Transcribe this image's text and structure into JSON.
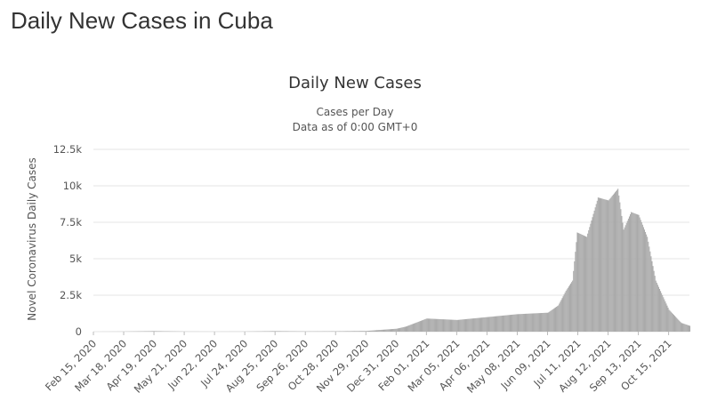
{
  "page": {
    "heading": "Daily New Cases in Cuba"
  },
  "chart_data": {
    "type": "bar",
    "title": "Daily New Cases",
    "subtitle": [
      "Cases per Day",
      "Data as of 0:00 GMT+0"
    ],
    "xlabel": "",
    "ylabel": "Novel Coronavirus Daily Cases",
    "ylim": [
      0,
      12500
    ],
    "y_ticks": [
      0,
      2500,
      5000,
      7500,
      10000,
      12500
    ],
    "y_tick_labels": [
      "0",
      "2.5k",
      "5k",
      "7.5k",
      "10k",
      "12.5k"
    ],
    "x_range": [
      "2020-02-15",
      "2021-11-06"
    ],
    "x_tick_labels": [
      "Feb 15, 2020",
      "Mar 18, 2020",
      "Apr 19, 2020",
      "May 21, 2020",
      "Jun 22, 2020",
      "Jul 24, 2020",
      "Aug 25, 2020",
      "Sep 26, 2020",
      "Oct 28, 2020",
      "Nov 29, 2020",
      "Dec 31, 2020",
      "Feb 01, 2021",
      "Mar 05, 2021",
      "Apr 06, 2021",
      "May 08, 2021",
      "Jun 09, 2021",
      "Jul 11, 2021",
      "Aug 12, 2021",
      "Sep 13, 2021",
      "Oct 15, 2021"
    ],
    "bar_color": "#aaaaaa",
    "grid": true,
    "legend": "none",
    "series": [
      {
        "values_by_date": [
          [
            "2020-02-15",
            0
          ],
          [
            "2020-03-18",
            10
          ],
          [
            "2020-04-19",
            40
          ],
          [
            "2020-05-21",
            10
          ],
          [
            "2020-06-22",
            5
          ],
          [
            "2020-07-24",
            10
          ],
          [
            "2020-08-25",
            40
          ],
          [
            "2020-09-26",
            20
          ],
          [
            "2020-10-28",
            30
          ],
          [
            "2020-11-29",
            50
          ],
          [
            "2020-12-31",
            200
          ],
          [
            "2021-01-10",
            350
          ],
          [
            "2021-01-20",
            600
          ],
          [
            "2021-02-01",
            900
          ],
          [
            "2021-03-05",
            800
          ],
          [
            "2021-04-06",
            1000
          ],
          [
            "2021-05-08",
            1200
          ],
          [
            "2021-06-09",
            1300
          ],
          [
            "2021-06-20",
            1800
          ],
          [
            "2021-06-28",
            2800
          ],
          [
            "2021-07-05",
            3500
          ],
          [
            "2021-07-10",
            6800
          ],
          [
            "2021-07-20",
            6500
          ],
          [
            "2021-08-01",
            9200
          ],
          [
            "2021-08-12",
            9000
          ],
          [
            "2021-08-22",
            9800
          ],
          [
            "2021-08-28",
            7000
          ],
          [
            "2021-09-05",
            8200
          ],
          [
            "2021-09-13",
            8000
          ],
          [
            "2021-09-22",
            6500
          ],
          [
            "2021-10-01",
            3500
          ],
          [
            "2021-10-15",
            1500
          ],
          [
            "2021-10-28",
            600
          ],
          [
            "2021-11-06",
            400
          ]
        ]
      }
    ]
  }
}
